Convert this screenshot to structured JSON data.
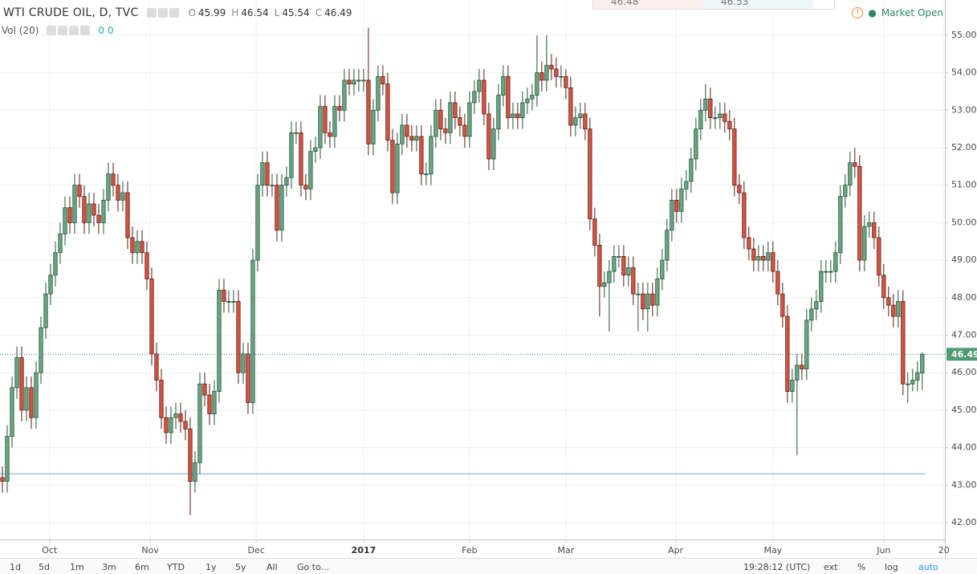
{
  "chart_data": {
    "type": "candlestick",
    "title": "WTI CRUDE OIL, D, TVC",
    "up_color": "#6ba583",
    "up_border": "#225437",
    "down_color": "#d75442",
    "down_border": "#5b1a13",
    "open": [
      43.2,
      43.1,
      44.3,
      45.6,
      46.4,
      45.0,
      45.6,
      44.8,
      46.0,
      47.2,
      48.1,
      48.6,
      49.2,
      49.7,
      50.4,
      50.0,
      51.0,
      50.7,
      50.0,
      50.5,
      50.2,
      50.0,
      50.6,
      51.3,
      51.0,
      50.6,
      50.8,
      49.6,
      49.2,
      49.5,
      49.2,
      48.5,
      46.5,
      45.8,
      44.8,
      44.4,
      44.8,
      44.9,
      44.7,
      44.5,
      43.1,
      43.6,
      45.7,
      45.4,
      44.9,
      45.5,
      48.2,
      47.9,
      47.9,
      47.9,
      46.0,
      46.5,
      45.2,
      49.0,
      51.0,
      51.6,
      51.0,
      51.0,
      49.8,
      51.0,
      51.2,
      52.4,
      52.4,
      51.0,
      50.9,
      51.9,
      52.0,
      53.1,
      52.4,
      52.3,
      53.1,
      53.0,
      53.8,
      53.7,
      53.8,
      53.8,
      53.8,
      52.1,
      53.0,
      53.9,
      53.7,
      52.2,
      50.8,
      52.1,
      52.6,
      52.3,
      52.2,
      52.3,
      51.3,
      51.3,
      52.3,
      53.0,
      52.5,
      52.4,
      53.2,
      52.8,
      52.6,
      52.3,
      53.2,
      53.5,
      53.8,
      52.9,
      51.7,
      52.5,
      53.4,
      53.9,
      52.8,
      52.9,
      52.8,
      53.2,
      53.3,
      53.4,
      54.0,
      53.8,
      54.2,
      54.1,
      53.9,
      53.9,
      53.6,
      52.6,
      52.8,
      52.9,
      52.5,
      50.1,
      49.4,
      48.3,
      48.4,
      48.7,
      49.1,
      49.1,
      48.6,
      48.8,
      48.1,
      48.1,
      47.7,
      48.1,
      47.8,
      48.5,
      49.0,
      49.8,
      50.6,
      50.3,
      50.9,
      51.1,
      51.7,
      52.5,
      53.0,
      53.3,
      52.8,
      52.8,
      52.9,
      52.7,
      52.5,
      51.0,
      50.8,
      49.6,
      49.3,
      49.0,
      49.1,
      49.0,
      49.2,
      48.7,
      48.1,
      47.5,
      45.5,
      45.8,
      46.2,
      46.1,
      47.4,
      47.7,
      47.9,
      48.7,
      48.7,
      48.7,
      49.2,
      50.7,
      51.0,
      51.6,
      51.5,
      49.0,
      49.9,
      50.0,
      49.6,
      48.6,
      48.0,
      47.8,
      47.5,
      47.9,
      45.7,
      45.7,
      45.8,
      45.99
    ],
    "high": [
      43.5,
      44.6,
      45.9,
      46.7,
      46.7,
      45.9,
      45.9,
      46.3,
      47.5,
      48.4,
      48.9,
      49.5,
      50.0,
      50.7,
      50.7,
      51.3,
      51.3,
      51.0,
      50.8,
      50.8,
      50.5,
      50.9,
      51.6,
      51.6,
      51.3,
      51.1,
      51.1,
      49.9,
      49.8,
      49.8,
      49.5,
      48.8,
      46.8,
      46.1,
      45.1,
      45.1,
      45.2,
      45.2,
      45.0,
      44.8,
      43.9,
      46.0,
      46.0,
      45.7,
      45.8,
      48.5,
      48.5,
      48.2,
      48.2,
      48.2,
      46.8,
      46.8,
      49.3,
      51.3,
      51.9,
      51.9,
      51.3,
      51.3,
      51.3,
      51.5,
      52.7,
      52.7,
      52.7,
      51.3,
      52.2,
      52.3,
      53.4,
      53.4,
      52.7,
      53.4,
      53.4,
      54.1,
      54.1,
      54.1,
      54.1,
      54.1,
      55.2,
      53.3,
      54.2,
      54.2,
      54.0,
      52.5,
      52.4,
      52.9,
      52.9,
      52.6,
      52.6,
      52.6,
      51.6,
      52.6,
      53.3,
      53.3,
      52.8,
      53.5,
      53.5,
      53.1,
      52.9,
      53.5,
      53.8,
      54.1,
      54.1,
      53.2,
      52.8,
      53.7,
      54.2,
      54.2,
      53.2,
      53.2,
      53.5,
      53.6,
      53.7,
      55.0,
      54.3,
      55.0,
      54.5,
      54.4,
      54.2,
      54.1,
      53.9,
      53.1,
      53.2,
      53.2,
      52.8,
      50.4,
      49.7,
      48.7,
      49.0,
      49.4,
      49.4,
      49.4,
      49.1,
      49.1,
      48.4,
      48.4,
      48.4,
      48.4,
      48.8,
      49.3,
      50.1,
      50.9,
      50.9,
      51.2,
      51.4,
      52.0,
      52.8,
      53.3,
      53.7,
      53.6,
      53.1,
      53.2,
      53.2,
      53.0,
      52.8,
      51.3,
      51.1,
      49.9,
      49.6,
      49.4,
      49.4,
      49.5,
      49.5,
      49.0,
      48.4,
      47.8,
      46.1,
      46.5,
      46.5,
      47.7,
      48.0,
      48.2,
      49.0,
      49.0,
      49.0,
      49.5,
      51.0,
      51.3,
      51.9,
      52.0,
      51.8,
      50.2,
      50.3,
      50.3,
      49.9,
      48.9,
      48.3,
      48.1,
      48.2,
      48.2,
      46.0,
      46.1,
      46.3,
      46.54
    ],
    "low": [
      42.8,
      42.8,
      44.0,
      45.3,
      44.7,
      44.7,
      44.5,
      44.5,
      45.7,
      46.9,
      47.8,
      48.3,
      48.9,
      49.4,
      49.7,
      49.7,
      50.4,
      49.7,
      49.7,
      49.9,
      49.7,
      49.7,
      50.3,
      50.7,
      50.3,
      50.3,
      49.3,
      48.9,
      48.9,
      48.9,
      48.2,
      46.2,
      45.5,
      44.5,
      44.1,
      44.1,
      44.5,
      44.4,
      44.2,
      42.2,
      42.8,
      43.3,
      45.1,
      44.6,
      44.6,
      45.2,
      47.6,
      47.6,
      47.6,
      45.7,
      45.7,
      44.9,
      44.9,
      48.7,
      50.7,
      50.7,
      50.7,
      49.5,
      49.5,
      50.7,
      50.9,
      52.1,
      50.7,
      50.6,
      50.6,
      51.6,
      51.7,
      52.1,
      52.0,
      52.0,
      52.7,
      52.7,
      53.4,
      53.4,
      53.5,
      53.5,
      51.8,
      51.8,
      52.7,
      53.4,
      51.9,
      50.5,
      50.5,
      51.8,
      52.0,
      51.9,
      51.9,
      51.0,
      51.0,
      51.0,
      52.0,
      52.2,
      52.1,
      52.1,
      52.5,
      52.3,
      52.0,
      52.0,
      52.9,
      53.2,
      52.6,
      51.4,
      51.4,
      52.2,
      53.1,
      52.5,
      52.5,
      52.5,
      52.5,
      52.9,
      53.0,
      53.1,
      53.5,
      53.5,
      53.8,
      53.6,
      53.6,
      53.3,
      52.3,
      52.3,
      52.5,
      52.2,
      49.8,
      49.1,
      47.5,
      48.0,
      47.1,
      48.4,
      48.8,
      48.3,
      48.3,
      47.8,
      47.1,
      47.4,
      47.1,
      47.5,
      47.5,
      48.2,
      48.7,
      49.5,
      50.0,
      50.0,
      50.6,
      50.8,
      51.4,
      52.2,
      52.7,
      52.5,
      52.5,
      52.5,
      52.4,
      52.2,
      50.7,
      50.5,
      49.3,
      49.0,
      48.7,
      48.7,
      48.7,
      48.7,
      48.4,
      47.8,
      47.2,
      45.2,
      45.2,
      43.8,
      45.8,
      45.8,
      47.1,
      47.4,
      47.6,
      48.4,
      48.4,
      48.4,
      48.9,
      50.4,
      50.7,
      51.2,
      48.7,
      48.7,
      49.6,
      49.3,
      48.3,
      47.7,
      47.5,
      47.2,
      47.2,
      45.4,
      45.2,
      45.5,
      45.5,
      45.54
    ],
    "close": [
      43.1,
      44.3,
      45.6,
      46.4,
      45.0,
      45.6,
      44.8,
      46.0,
      47.2,
      48.1,
      48.6,
      49.2,
      49.7,
      50.4,
      50.0,
      51.0,
      50.7,
      50.0,
      50.5,
      50.2,
      50.0,
      50.6,
      51.3,
      51.0,
      50.6,
      50.8,
      49.6,
      49.2,
      49.5,
      49.2,
      48.5,
      46.5,
      45.8,
      44.8,
      44.4,
      44.8,
      44.9,
      44.7,
      44.5,
      43.1,
      43.6,
      45.7,
      45.4,
      44.9,
      45.5,
      48.2,
      47.9,
      47.9,
      47.9,
      46.0,
      46.5,
      45.2,
      49.0,
      51.0,
      51.6,
      51.0,
      51.0,
      49.8,
      51.0,
      51.2,
      52.4,
      52.4,
      51.0,
      50.9,
      51.9,
      52.0,
      53.1,
      52.4,
      52.3,
      53.1,
      53.0,
      53.8,
      53.7,
      53.8,
      53.8,
      53.8,
      52.1,
      53.0,
      53.9,
      53.7,
      52.2,
      50.8,
      52.1,
      52.6,
      52.3,
      52.2,
      52.3,
      51.3,
      51.3,
      52.3,
      53.0,
      52.5,
      52.4,
      53.2,
      52.8,
      52.6,
      52.3,
      53.2,
      53.5,
      53.8,
      52.9,
      51.7,
      52.5,
      53.4,
      53.9,
      52.8,
      52.9,
      52.8,
      53.2,
      53.3,
      53.4,
      54.0,
      53.8,
      54.2,
      54.1,
      53.9,
      53.9,
      53.6,
      52.6,
      52.8,
      52.9,
      52.5,
      50.1,
      49.4,
      48.3,
      48.4,
      48.7,
      49.1,
      49.1,
      48.6,
      48.8,
      48.1,
      48.1,
      47.7,
      48.1,
      47.8,
      48.5,
      49.0,
      49.8,
      50.6,
      50.3,
      50.9,
      51.1,
      51.7,
      52.5,
      53.0,
      53.3,
      52.8,
      52.8,
      52.9,
      52.7,
      52.5,
      51.0,
      50.8,
      49.6,
      49.3,
      49.0,
      49.1,
      49.0,
      49.2,
      48.7,
      48.1,
      47.5,
      45.5,
      45.8,
      46.2,
      46.1,
      47.4,
      47.7,
      47.9,
      48.7,
      48.7,
      48.7,
      49.2,
      50.7,
      51.0,
      51.6,
      51.5,
      49.0,
      49.9,
      50.0,
      49.6,
      48.6,
      48.0,
      47.8,
      47.5,
      47.9,
      45.7,
      45.7,
      45.8,
      46.0,
      46.49
    ],
    "xlim": [
      -0.5,
      195.7
    ],
    "xticks": [
      {
        "value": 9.8,
        "label": "Oct"
      },
      {
        "value": 30.7,
        "label": "Nov"
      },
      {
        "value": 52.7,
        "label": "Dec"
      },
      {
        "value": 75,
        "label": "2017"
      },
      {
        "value": 97,
        "label": "Feb"
      },
      {
        "value": 117,
        "label": "Mar"
      },
      {
        "value": 139.8,
        "label": "Apr"
      },
      {
        "value": 160,
        "label": "May"
      },
      {
        "value": 183,
        "label": "Jun"
      },
      {
        "value": 195.5,
        "label": "20"
      }
    ],
    "ylim": [
      41.55,
      55.94
    ],
    "yticks": [
      {
        "value": 42,
        "label": "42.00"
      },
      {
        "value": 43,
        "label": "43.00"
      },
      {
        "value": 44,
        "label": "44.00"
      },
      {
        "value": 45,
        "label": "45.00"
      },
      {
        "value": 46,
        "label": "46.00"
      },
      {
        "value": 47,
        "label": "47.00"
      },
      {
        "value": 48,
        "label": "48.00"
      },
      {
        "value": 49,
        "label": "49.00"
      },
      {
        "value": 50,
        "label": "50.00"
      },
      {
        "value": 51,
        "label": "51.00"
      },
      {
        "value": 52,
        "label": "52.00"
      },
      {
        "value": 53,
        "label": "53.00"
      },
      {
        "value": 54,
        "label": "54.00"
      },
      {
        "value": 55,
        "label": "55.00"
      }
    ],
    "grid": true,
    "horizontal_line": {
      "value": 43.3,
      "color": "#9fc5e8"
    },
    "price_line": {
      "value": 46.49,
      "label": "46.49",
      "color": "#4f9a73"
    },
    "ohlc_legend": [
      {
        "label": "O",
        "value": 45.99
      },
      {
        "label": "H",
        "value": 46.54
      },
      {
        "label": "L",
        "value": 45.54
      },
      {
        "label": "C",
        "value": 46.49
      }
    ],
    "volume": {
      "label": "Vol (20)",
      "values": [
        0,
        0
      ]
    },
    "status": "Market Open",
    "quote": [
      "46.48",
      "46.53"
    ]
  },
  "toolbar": {
    "ranges": [
      "1d",
      "5d",
      "1m",
      "3m",
      "6m",
      "YTD",
      "1y",
      "5y",
      "All"
    ],
    "goto": "Go to...",
    "clock": "19:28:12 (UTC)",
    "options": [
      "ext",
      "%",
      "log",
      "auto"
    ]
  }
}
